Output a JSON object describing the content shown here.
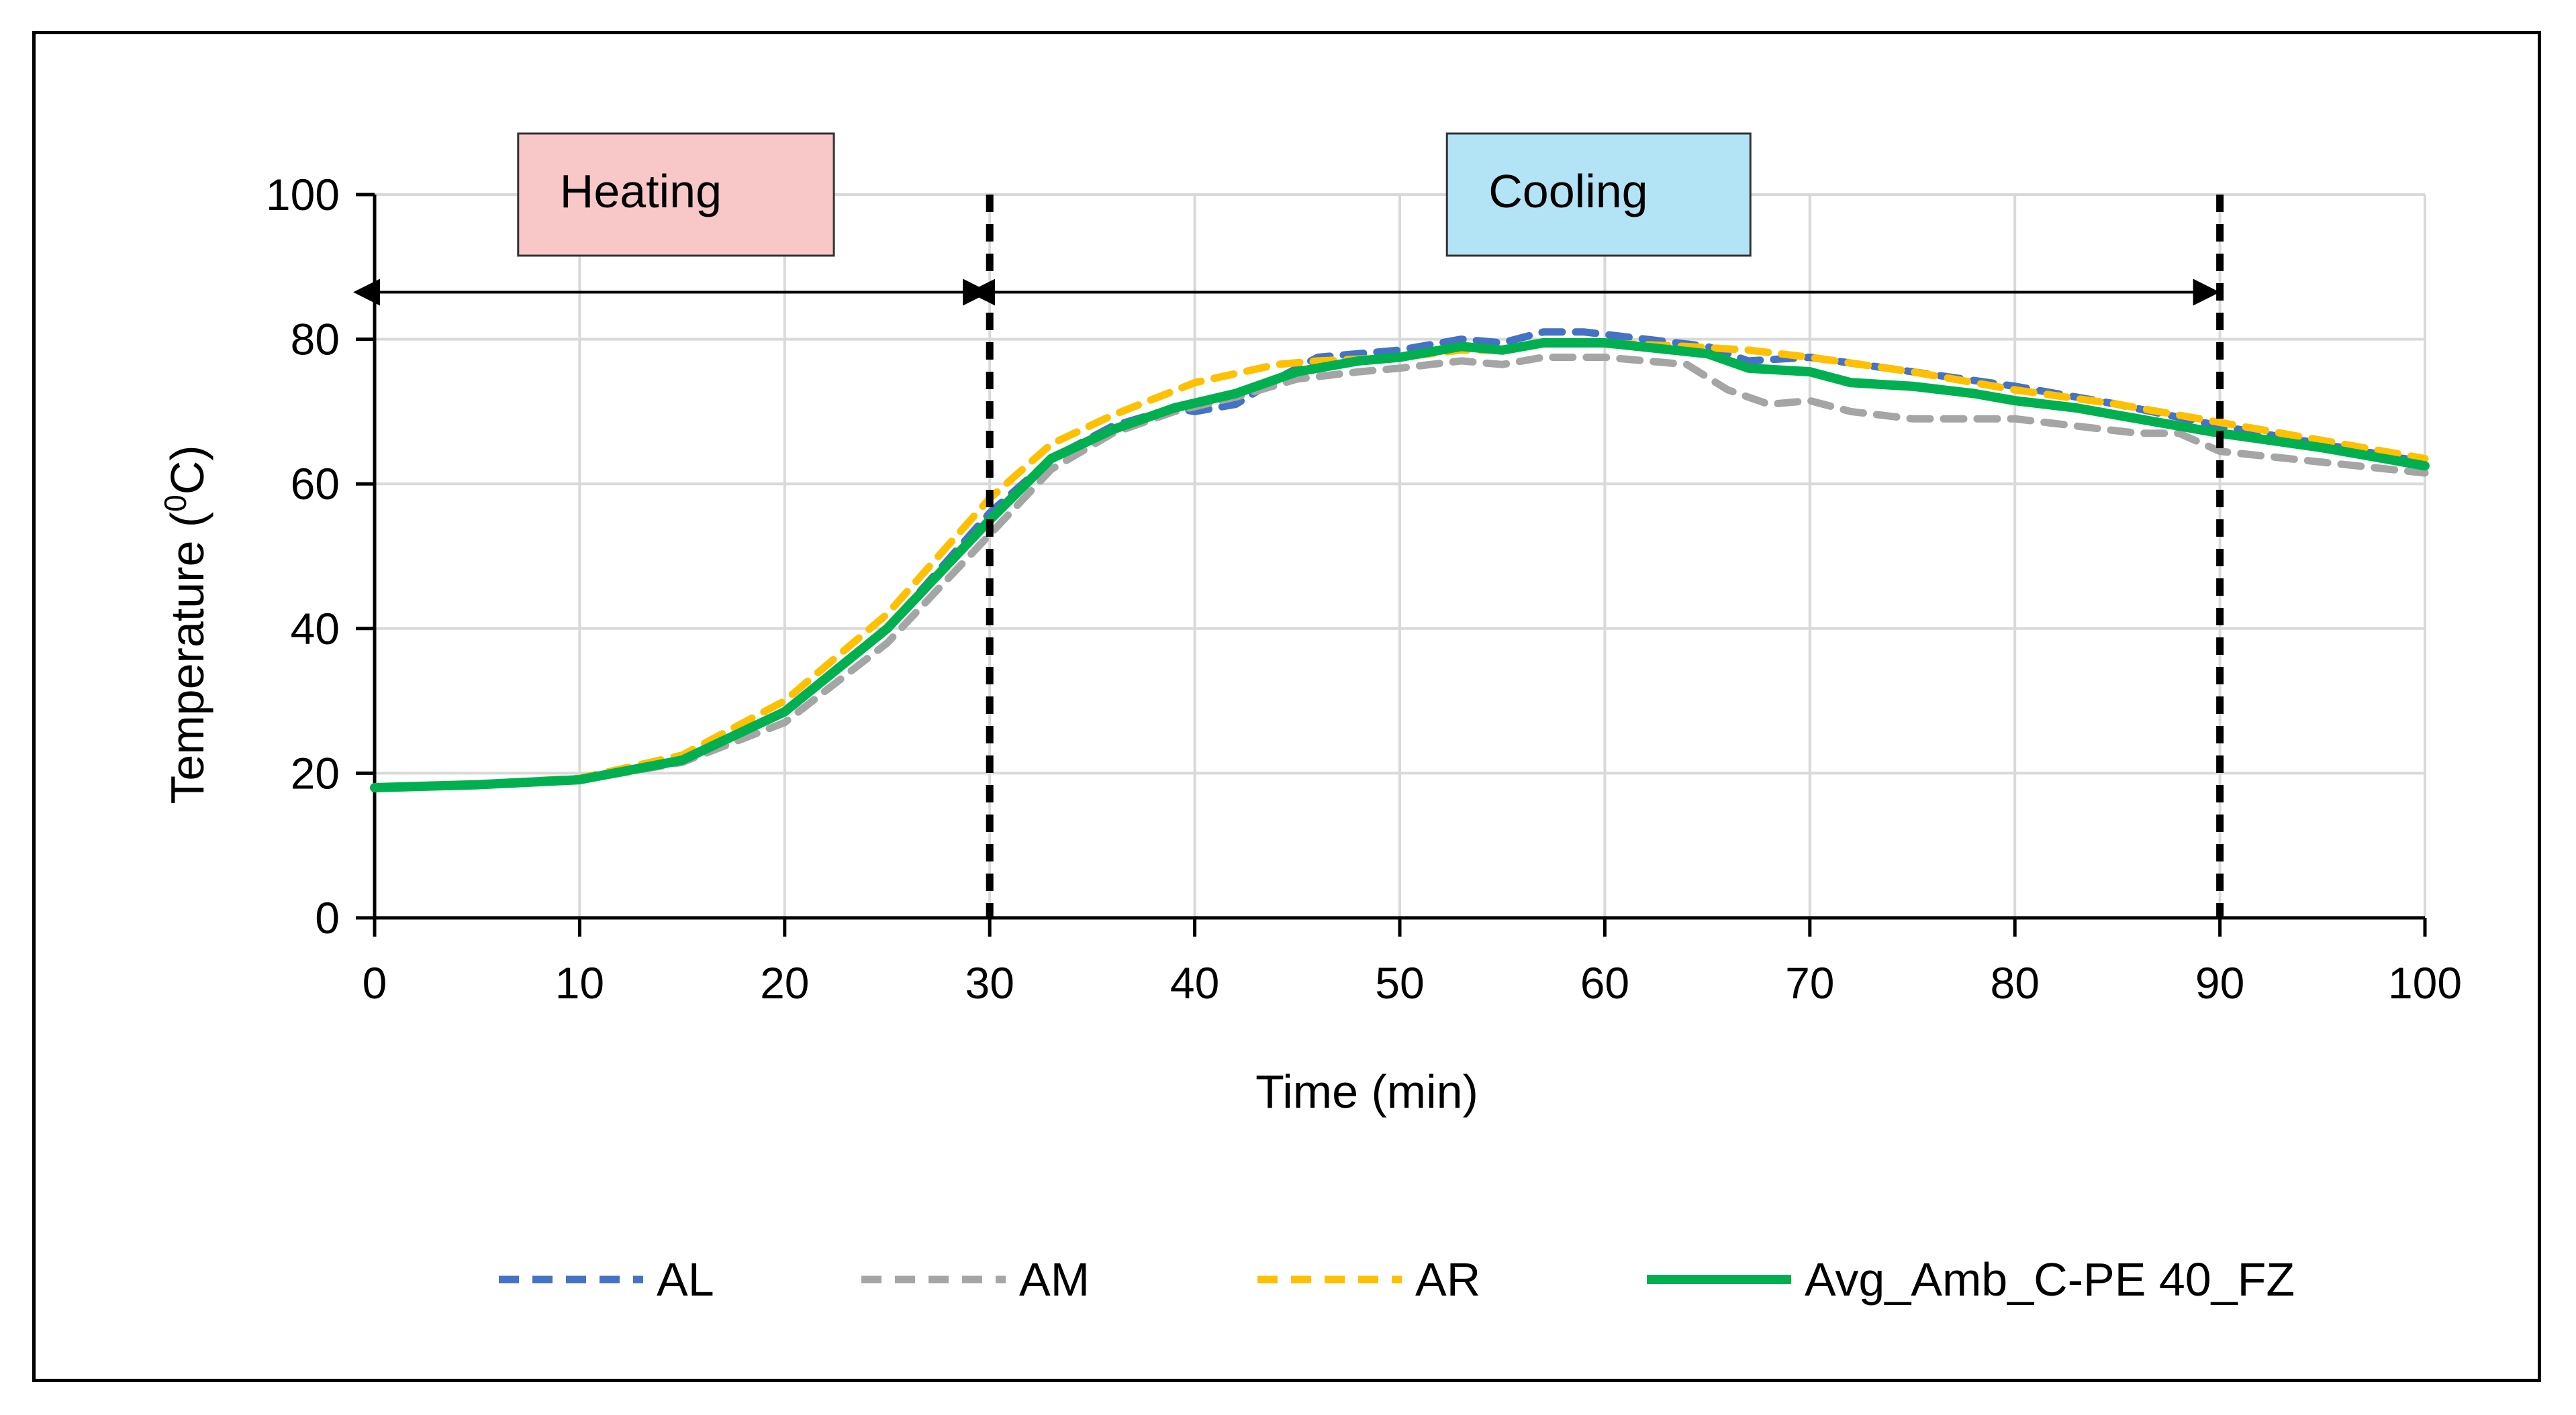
{
  "chart_data": {
    "type": "line",
    "title": "",
    "xlabel": "Time (min)",
    "ylabel_main": "Temperature (",
    "ylabel_sup": "0",
    "ylabel_end": "C)",
    "xlim": [
      0,
      100
    ],
    "ylim": [
      0,
      100
    ],
    "x_ticks": [
      "0",
      "10",
      "20",
      "30",
      "40",
      "50",
      "60",
      "70",
      "80",
      "90",
      "100"
    ],
    "y_ticks": [
      "0",
      "20",
      "40",
      "60",
      "80",
      "100"
    ],
    "grid": true,
    "legend_position": "bottom",
    "series": [
      {
        "name": "AL",
        "color": "#4472C4",
        "style": "dashed",
        "points": [
          [
            0,
            18
          ],
          [
            5,
            18.5
          ],
          [
            10,
            19.2
          ],
          [
            15,
            22
          ],
          [
            20,
            28.5
          ],
          [
            25,
            40
          ],
          [
            30,
            56
          ],
          [
            33,
            63.5
          ],
          [
            36,
            68
          ],
          [
            39,
            70.5
          ],
          [
            40,
            70
          ],
          [
            42,
            71
          ],
          [
            44,
            74.5
          ],
          [
            46,
            77.5
          ],
          [
            50,
            78.5
          ],
          [
            53,
            80
          ],
          [
            55,
            79.5
          ],
          [
            57,
            81
          ],
          [
            59,
            81
          ],
          [
            62,
            80
          ],
          [
            65,
            79
          ],
          [
            67,
            77
          ],
          [
            70,
            77.5
          ],
          [
            75,
            75.5
          ],
          [
            80,
            73.5
          ],
          [
            85,
            71
          ],
          [
            90,
            68
          ],
          [
            95,
            65.5
          ],
          [
            100,
            63
          ]
        ]
      },
      {
        "name": "AM",
        "color": "#A5A5A5",
        "style": "dashed",
        "points": [
          [
            0,
            18
          ],
          [
            5,
            18.3
          ],
          [
            10,
            19
          ],
          [
            15,
            21.5
          ],
          [
            20,
            27
          ],
          [
            25,
            38
          ],
          [
            30,
            53
          ],
          [
            33,
            62
          ],
          [
            36,
            67
          ],
          [
            39,
            70
          ],
          [
            42,
            72
          ],
          [
            45,
            74.5
          ],
          [
            48,
            75.5
          ],
          [
            50,
            76
          ],
          [
            53,
            77
          ],
          [
            55,
            76.5
          ],
          [
            57,
            77.5
          ],
          [
            60,
            77.5
          ],
          [
            64,
            76.5
          ],
          [
            66,
            73
          ],
          [
            68,
            71
          ],
          [
            70,
            71.5
          ],
          [
            72,
            70
          ],
          [
            75,
            69
          ],
          [
            80,
            69
          ],
          [
            83,
            68
          ],
          [
            86,
            67
          ],
          [
            88,
            67
          ],
          [
            90,
            64.5
          ],
          [
            95,
            63
          ],
          [
            100,
            61.5
          ]
        ]
      },
      {
        "name": "AR",
        "color": "#FFC000",
        "style": "dashed",
        "points": [
          [
            0,
            18
          ],
          [
            5,
            18.5
          ],
          [
            10,
            19.3
          ],
          [
            15,
            22.5
          ],
          [
            20,
            30
          ],
          [
            25,
            42
          ],
          [
            30,
            58
          ],
          [
            33,
            65.5
          ],
          [
            36,
            69.5
          ],
          [
            40,
            74
          ],
          [
            44,
            76.5
          ],
          [
            46,
            77
          ],
          [
            50,
            77.5
          ],
          [
            53,
            78.5
          ],
          [
            55,
            78.5
          ],
          [
            57,
            79.5
          ],
          [
            60,
            79.5
          ],
          [
            64,
            79
          ],
          [
            67,
            78.5
          ],
          [
            70,
            77.5
          ],
          [
            75,
            75.5
          ],
          [
            80,
            73
          ],
          [
            85,
            71
          ],
          [
            90,
            68.5
          ],
          [
            95,
            66
          ],
          [
            100,
            63.5
          ]
        ]
      },
      {
        "name": "Avg_Amb_C-PE 40_FZ",
        "color": "#00B050",
        "style": "solid",
        "points": [
          [
            0,
            18
          ],
          [
            5,
            18.4
          ],
          [
            10,
            19.1
          ],
          [
            15,
            21.8
          ],
          [
            20,
            28.5
          ],
          [
            25,
            40
          ],
          [
            30,
            55
          ],
          [
            33,
            63.5
          ],
          [
            36,
            67.5
          ],
          [
            39,
            70.5
          ],
          [
            42,
            72.5
          ],
          [
            45,
            75.5
          ],
          [
            48,
            77
          ],
          [
            50,
            77.5
          ],
          [
            53,
            79
          ],
          [
            55,
            78.5
          ],
          [
            57,
            79.5
          ],
          [
            60,
            79.5
          ],
          [
            65,
            78
          ],
          [
            67,
            76
          ],
          [
            70,
            75.5
          ],
          [
            72,
            74
          ],
          [
            75,
            73.5
          ],
          [
            78,
            72.5
          ],
          [
            80,
            71.5
          ],
          [
            83,
            70.5
          ],
          [
            86,
            69
          ],
          [
            90,
            67
          ],
          [
            95,
            65
          ],
          [
            100,
            62.5
          ]
        ]
      }
    ],
    "annotations": {
      "heating_label": "Heating",
      "cooling_label": "Cooling",
      "heating_box_color": "#F8C8C8",
      "cooling_box_color": "#B3E4F5",
      "heating_range": [
        0,
        30
      ],
      "cooling_range": [
        30,
        90
      ],
      "vertical_markers": [
        30,
        90
      ],
      "arrow_y": 86.5
    }
  }
}
